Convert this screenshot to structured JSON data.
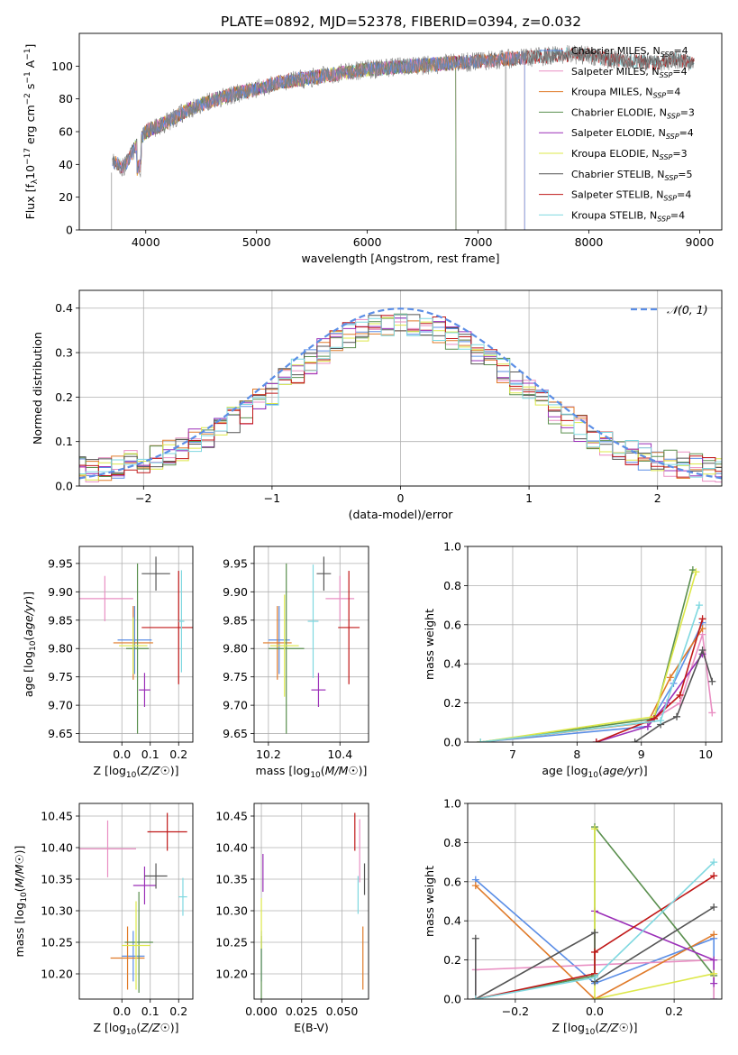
{
  "figure_title": "PLATE=0892, MJD=52378, FIBERID=0394, z=0.032",
  "colors": {
    "Chabrier MILES": "#5b8ee6",
    "Salpeter MILES": "#e98fc3",
    "Kroupa MILES": "#e07b2a",
    "Chabrier ELODIE": "#5a8f4e",
    "Salpeter ELODIE": "#9b2fb8",
    "Kroupa ELODIE": "#dde84a",
    "Chabrier STELIB": "#555555",
    "Salpeter STELIB": "#c01818",
    "Kroupa STELIB": "#7fd8e0"
  },
  "chart_data": [
    {
      "id": "spectrum",
      "type": "line",
      "title": "PLATE=0892, MJD=52378, FIBERID=0394, z=0.032",
      "xlabel": "wavelength [Angstrom, rest frame]",
      "ylabel": "Flux [f_λ 10^-17 erg cm^-2 s^-1 A^-1]",
      "xlim": [
        3400,
        9200
      ],
      "ylim": [
        0,
        120
      ],
      "xticks": [
        4000,
        5000,
        6000,
        7000,
        8000,
        9000
      ],
      "yticks": [
        0,
        20,
        40,
        60,
        80,
        100
      ],
      "grid": false,
      "legend": "upper-right",
      "series": [
        {
          "name": "Chabrier MILES",
          "nssp": "4"
        },
        {
          "name": "Salpeter MILES",
          "nssp": "4"
        },
        {
          "name": "Kroupa MILES",
          "nssp": "4"
        },
        {
          "name": "Chabrier ELODIE",
          "nssp": "3"
        },
        {
          "name": "Salpeter ELODIE",
          "nssp": "4"
        },
        {
          "name": "Kroupa ELODIE",
          "nssp": "3"
        },
        {
          "name": "Chabrier STELIB",
          "nssp": "5"
        },
        {
          "name": "Salpeter STELIB",
          "nssp": "4"
        },
        {
          "name": "Kroupa STELIB",
          "nssp": "4"
        }
      ],
      "continuum": {
        "x": [
          3700,
          3800,
          3900,
          4000,
          4200,
          4400,
          4600,
          4800,
          5000,
          5200,
          5400,
          5600,
          5800,
          6000,
          6200,
          6400,
          6600,
          6800,
          7000,
          7200,
          7400,
          7600,
          7800,
          8000,
          8200,
          8400,
          8600,
          8800,
          8950
        ],
        "y": [
          42,
          38,
          50,
          60,
          66,
          74,
          79,
          83,
          86,
          90,
          92,
          94,
          96,
          98,
          99,
          100,
          101,
          102,
          103,
          104,
          105,
          106,
          107,
          107,
          104,
          103,
          102,
          104,
          102
        ]
      }
    },
    {
      "id": "residuals",
      "type": "histogram",
      "xlabel": "(data-model)/error",
      "ylabel": "Normed distribution",
      "xlim": [
        -2.5,
        2.5
      ],
      "ylim": [
        0,
        0.44
      ],
      "xticks": [
        -2,
        -1,
        0,
        1,
        2
      ],
      "yticks": [
        0.0,
        0.1,
        0.2,
        0.3,
        0.4
      ],
      "grid": true,
      "legend": "upper-right",
      "reference_curve": "𝒩(0, 1)",
      "bin_width": 0.1
    },
    {
      "id": "age_vs_Z",
      "type": "errorbar",
      "xlabel": "Z [log10(Z/Z☉)]",
      "ylabel": "age  [log10(age/yr)]",
      "xlim": [
        -0.15,
        0.25
      ],
      "ylim": [
        9.635,
        9.98
      ],
      "xticks": [
        0.0,
        0.1,
        0.2
      ],
      "yticks": [
        9.65,
        9.7,
        9.75,
        9.8,
        9.85,
        9.9,
        9.95
      ],
      "grid": true,
      "points": [
        {
          "name": "Chabrier MILES",
          "x": 0.045,
          "xerr": 0.06,
          "y": 9.815,
          "yerr": 0.06
        },
        {
          "name": "Salpeter MILES",
          "x": -0.06,
          "xerr": 0.1,
          "y": 9.888,
          "yerr": 0.04
        },
        {
          "name": "Kroupa MILES",
          "x": 0.04,
          "xerr": 0.07,
          "y": 9.81,
          "yerr": 0.065
        },
        {
          "name": "Chabrier ELODIE",
          "x": 0.055,
          "xerr": 0.04,
          "y": 9.8,
          "yerr": 0.15
        },
        {
          "name": "Salpeter ELODIE",
          "x": 0.08,
          "xerr": 0.02,
          "y": 9.727,
          "yerr": 0.03
        },
        {
          "name": "Kroupa ELODIE",
          "x": 0.04,
          "xerr": 0.05,
          "y": 9.805,
          "yerr": 0.05
        },
        {
          "name": "Chabrier STELIB",
          "x": 0.12,
          "xerr": 0.05,
          "y": 9.932,
          "yerr": 0.03
        },
        {
          "name": "Salpeter STELIB",
          "x": 0.2,
          "xerr": 0.13,
          "y": 9.837,
          "yerr": 0.1
        },
        {
          "name": "Kroupa STELIB",
          "x": 0.21,
          "xerr": 0.01,
          "y": 9.848,
          "yerr": 0.09
        }
      ]
    },
    {
      "id": "age_vs_mass",
      "type": "errorbar",
      "xlabel": "mass [log10(M/M☉)]",
      "ylabel": "",
      "xlim": [
        10.16,
        10.48
      ],
      "ylim": [
        9.635,
        9.98
      ],
      "xticks": [
        10.2,
        10.4
      ],
      "yticks": [
        9.65,
        9.7,
        9.75,
        9.8,
        9.85,
        9.9,
        9.95
      ],
      "grid": true,
      "points": [
        {
          "name": "Chabrier MILES",
          "x": 10.23,
          "xerr": 0.03,
          "y": 9.815,
          "yerr": 0.06
        },
        {
          "name": "Salpeter MILES",
          "x": 10.4,
          "xerr": 0.04,
          "y": 9.888,
          "yerr": 0.04
        },
        {
          "name": "Kroupa MILES",
          "x": 10.225,
          "xerr": 0.04,
          "y": 9.81,
          "yerr": 0.065
        },
        {
          "name": "Chabrier ELODIE",
          "x": 10.25,
          "xerr": 0.05,
          "y": 9.8,
          "yerr": 0.15
        },
        {
          "name": "Salpeter ELODIE",
          "x": 10.34,
          "xerr": 0.02,
          "y": 9.727,
          "yerr": 0.03
        },
        {
          "name": "Kroupa ELODIE",
          "x": 10.245,
          "xerr": 0.04,
          "y": 9.805,
          "yerr": 0.09
        },
        {
          "name": "Chabrier STELIB",
          "x": 10.355,
          "xerr": 0.02,
          "y": 9.932,
          "yerr": 0.03
        },
        {
          "name": "Salpeter STELIB",
          "x": 10.425,
          "xerr": 0.03,
          "y": 9.837,
          "yerr": 0.1
        },
        {
          "name": "Kroupa STELIB",
          "x": 10.325,
          "xerr": 0.015,
          "y": 9.848,
          "yerr": 0.1
        }
      ]
    },
    {
      "id": "mass_weight_vs_age",
      "type": "line",
      "xlabel": "age  [log10(age/yr)]",
      "ylabel": "mass weight",
      "xlim": [
        6.3,
        10.25
      ],
      "ylim": [
        0,
        1
      ],
      "xticks": [
        7,
        8,
        9,
        10
      ],
      "yticks": [
        0.0,
        0.2,
        0.4,
        0.6,
        0.8,
        1.0
      ],
      "grid": true,
      "series": [
        {
          "name": "Chabrier MILES",
          "x": [
            6.5,
            9.1,
            9.5,
            9.95
          ],
          "y": [
            0.0,
            0.08,
            0.3,
            0.61
          ]
        },
        {
          "name": "Salpeter MILES",
          "x": [
            6.5,
            9.1,
            9.6,
            9.95,
            10.1
          ],
          "y": [
            0.0,
            0.1,
            0.2,
            0.55,
            0.15
          ]
        },
        {
          "name": "Kroupa MILES",
          "x": [
            6.5,
            9.1,
            9.45,
            9.95
          ],
          "y": [
            0.0,
            0.1,
            0.33,
            0.58
          ]
        },
        {
          "name": "Chabrier ELODIE",
          "x": [
            6.5,
            9.2,
            9.8
          ],
          "y": [
            0.0,
            0.12,
            0.88
          ]
        },
        {
          "name": "Salpeter ELODIE",
          "x": [
            8.3,
            9.1,
            9.4,
            9.95
          ],
          "y": [
            0.0,
            0.08,
            0.2,
            0.45
          ]
        },
        {
          "name": "Kroupa ELODIE",
          "x": [
            6.5,
            9.2,
            9.85
          ],
          "y": [
            0.0,
            0.13,
            0.87
          ]
        },
        {
          "name": "Chabrier STELIB",
          "x": [
            8.9,
            9.3,
            9.55,
            9.95,
            10.1
          ],
          "y": [
            0.0,
            0.09,
            0.13,
            0.47,
            0.31
          ]
        },
        {
          "name": "Salpeter STELIB",
          "x": [
            8.3,
            9.2,
            9.6,
            9.95
          ],
          "y": [
            0.0,
            0.12,
            0.24,
            0.63
          ]
        },
        {
          "name": "Kroupa STELIB",
          "x": [
            6.5,
            9.3,
            9.9
          ],
          "y": [
            0.0,
            0.11,
            0.7
          ]
        }
      ]
    },
    {
      "id": "mass_vs_Z",
      "type": "errorbar",
      "xlabel": "Z [log10(Z/Z☉)]",
      "ylabel": "mass [log10(M/M☉)]",
      "xlim": [
        -0.15,
        0.25
      ],
      "ylim": [
        10.16,
        10.47
      ],
      "xticks": [
        0.0,
        0.1,
        0.2
      ],
      "yticks": [
        10.2,
        10.25,
        10.3,
        10.35,
        10.4,
        10.45
      ],
      "grid": true,
      "points": [
        {
          "name": "Chabrier MILES",
          "x": 0.04,
          "xerr": 0.04,
          "y": 10.228,
          "yerr": 0.04
        },
        {
          "name": "Salpeter MILES",
          "x": -0.05,
          "xerr": 0.1,
          "y": 10.398,
          "yerr": 0.045
        },
        {
          "name": "Kroupa MILES",
          "x": 0.02,
          "xerr": 0.06,
          "y": 10.225,
          "yerr": 0.05
        },
        {
          "name": "Chabrier ELODIE",
          "x": 0.06,
          "xerr": 0.05,
          "y": 10.25,
          "yerr": 0.08
        },
        {
          "name": "Salpeter ELODIE",
          "x": 0.08,
          "xerr": 0.04,
          "y": 10.34,
          "yerr": 0.03
        },
        {
          "name": "Kroupa ELODIE",
          "x": 0.05,
          "xerr": 0.05,
          "y": 10.245,
          "yerr": 0.07
        },
        {
          "name": "Chabrier STELIB",
          "x": 0.12,
          "xerr": 0.04,
          "y": 10.355,
          "yerr": 0.02
        },
        {
          "name": "Salpeter STELIB",
          "x": 0.16,
          "xerr": 0.07,
          "y": 10.425,
          "yerr": 0.03
        },
        {
          "name": "Kroupa STELIB",
          "x": 0.215,
          "xerr": 0.015,
          "y": 10.322,
          "yerr": 0.03
        }
      ]
    },
    {
      "id": "mass_vs_ebv",
      "type": "errorbar",
      "xlabel": "E(B-V)",
      "ylabel": "",
      "xlim": [
        -0.0045,
        0.0665
      ],
      "ylim": [
        10.16,
        10.47
      ],
      "xticks": [
        0.0,
        0.025,
        0.05
      ],
      "yticks": [
        10.2,
        10.25,
        10.3,
        10.35,
        10.4,
        10.45
      ],
      "grid": true,
      "points": [
        {
          "name": "Chabrier MILES",
          "x": 0.0,
          "xerr": 0.0,
          "y": 10.228,
          "yerr": 0.04
        },
        {
          "name": "Salpeter MILES",
          "x": 0.061,
          "xerr": 0.0,
          "y": 10.395,
          "yerr": 0.05
        },
        {
          "name": "Kroupa MILES",
          "x": 0.063,
          "xerr": 0.0,
          "y": 10.225,
          "yerr": 0.05
        },
        {
          "name": "Chabrier ELODIE",
          "x": 0.0,
          "xerr": 0.0,
          "y": 10.21,
          "yerr": 0.05
        },
        {
          "name": "Salpeter ELODIE",
          "x": 0.001,
          "xerr": 0.0,
          "y": 10.36,
          "yerr": 0.03
        },
        {
          "name": "Kroupa ELODIE",
          "x": 0.0,
          "xerr": 0.0,
          "y": 10.28,
          "yerr": 0.04
        },
        {
          "name": "Chabrier STELIB",
          "x": 0.064,
          "xerr": 0.0,
          "y": 10.35,
          "yerr": 0.025
        },
        {
          "name": "Salpeter STELIB",
          "x": 0.058,
          "xerr": 0.0,
          "y": 10.425,
          "yerr": 0.03
        },
        {
          "name": "Kroupa STELIB",
          "x": 0.06,
          "xerr": 0.0,
          "y": 10.325,
          "yerr": 0.03
        }
      ]
    },
    {
      "id": "mass_weight_vs_Z",
      "type": "line",
      "xlabel": "Z [log10(Z/Z☉)]",
      "ylabel": "mass weight",
      "xlim": [
        -0.32,
        0.32
      ],
      "ylim": [
        0,
        1
      ],
      "xticks": [
        -0.2,
        0.0,
        0.2
      ],
      "yticks": [
        0.0,
        0.2,
        0.4,
        0.6,
        0.8,
        1.0
      ],
      "grid": true,
      "series": [
        {
          "name": "Chabrier MILES",
          "x": [
            -0.3,
            0.0,
            0.3,
            0.3
          ],
          "y": [
            0.61,
            0.08,
            0.31,
            0.0
          ]
        },
        {
          "name": "Salpeter MILES",
          "x": [
            -0.3,
            -0.3,
            0.3,
            0.3
          ],
          "y": [
            0.0,
            0.15,
            0.2,
            0.0
          ]
        },
        {
          "name": "Kroupa MILES",
          "x": [
            -0.3,
            0.0,
            0.3
          ],
          "y": [
            0.58,
            0.0,
            0.33
          ]
        },
        {
          "name": "Chabrier ELODIE",
          "x": [
            -0.3,
            0.0,
            0.0,
            0.3
          ],
          "y": [
            0.0,
            0.12,
            0.88,
            0.12
          ]
        },
        {
          "name": "Salpeter ELODIE",
          "x": [
            0.0,
            0.3,
            0.3
          ],
          "y": [
            0.45,
            0.2,
            0.08
          ]
        },
        {
          "name": "Kroupa ELODIE",
          "x": [
            0.0,
            0.0,
            0.3
          ],
          "y": [
            0.87,
            0.0,
            0.13
          ]
        },
        {
          "name": "Chabrier STELIB",
          "x": [
            -0.3,
            -0.3,
            0.0,
            0.0,
            0.3
          ],
          "y": [
            0.31,
            0.0,
            0.34,
            0.09,
            0.47
          ]
        },
        {
          "name": "Salpeter STELIB",
          "x": [
            -0.3,
            0.0,
            0.0,
            0.3
          ],
          "y": [
            0.0,
            0.13,
            0.24,
            0.63
          ]
        },
        {
          "name": "Kroupa STELIB",
          "x": [
            -0.3,
            0.0,
            0.3
          ],
          "y": [
            0.0,
            0.11,
            0.7
          ]
        }
      ]
    }
  ]
}
